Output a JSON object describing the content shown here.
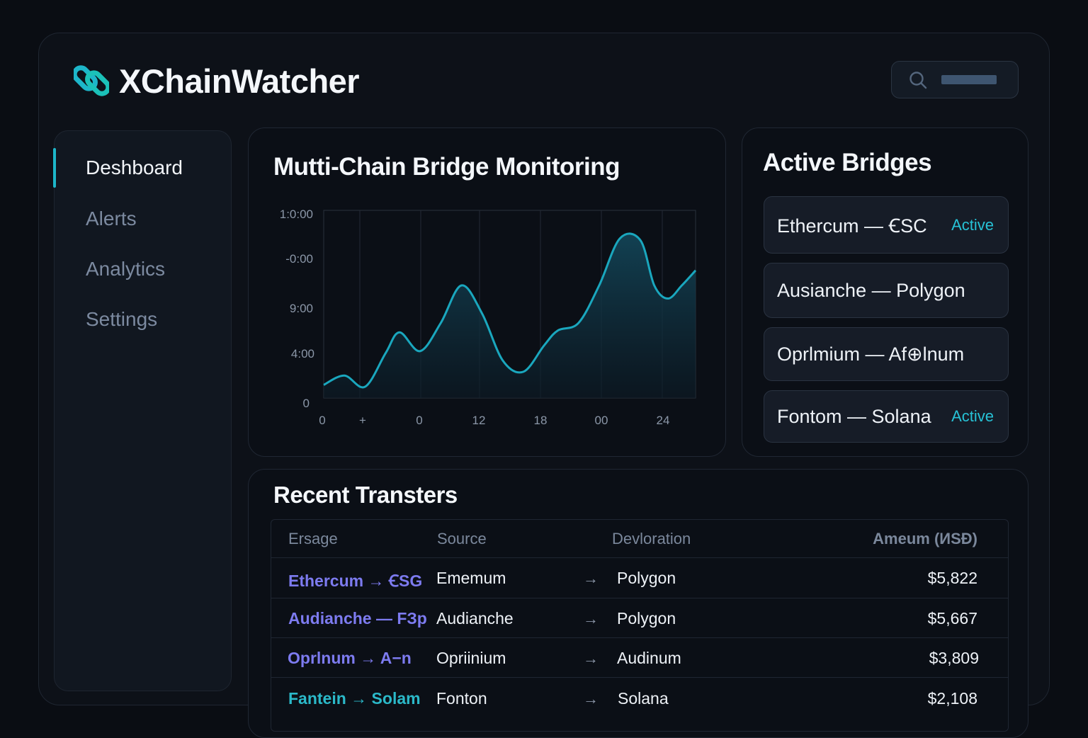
{
  "app": {
    "name": "XChainWatcher"
  },
  "sidebar": {
    "items": [
      {
        "label": "Deshboard",
        "active": true
      },
      {
        "label": "Alerts",
        "active": false
      },
      {
        "label": "Analytics",
        "active": false
      },
      {
        "label": "Settings",
        "active": false
      }
    ]
  },
  "monitor": {
    "title": "Mutti-Chain Bridge Monitoring",
    "chart_data": {
      "type": "area",
      "y_tick_labels": [
        "1:0:00",
        "-0:00",
        "9:00",
        "4:00",
        "0"
      ],
      "x_tick_labels": [
        "0",
        "+",
        "0",
        "12",
        "18",
        "00",
        "24"
      ],
      "x": [
        0,
        3,
        6,
        9,
        11,
        14,
        17,
        20,
        23,
        26,
        29,
        32,
        34,
        37,
        40,
        43,
        46,
        48,
        50,
        52,
        54
      ],
      "values": [
        0.07,
        0.12,
        0.06,
        0.24,
        0.35,
        0.25,
        0.4,
        0.6,
        0.45,
        0.2,
        0.14,
        0.28,
        0.36,
        0.4,
        0.6,
        0.85,
        0.84,
        0.6,
        0.53,
        0.6,
        0.68
      ],
      "ylim": [
        0,
        1
      ],
      "xlim": [
        0,
        54
      ],
      "grid": true,
      "line_color": "#1aa7be",
      "fill_color": "#0f3a4a"
    }
  },
  "bridges": {
    "title": "Active Bridges",
    "items": [
      {
        "name": "Ethercum — ꞒSC",
        "status": "Active"
      },
      {
        "name": "Ausianche — Polygon",
        "status": ""
      },
      {
        "name": "Oprlmium — Af⊕lnum",
        "status": ""
      },
      {
        "name": "Fontom — Solana",
        "status": "Active"
      }
    ]
  },
  "transfers": {
    "title": "Recent Transters",
    "columns": {
      "pair": "Ersage",
      "source": "Source",
      "destination": "Devloration",
      "amount": "Ameum (ИЅĐ)"
    },
    "arrow": "→",
    "rows": [
      {
        "pair": "Ethercum → ꞒSG",
        "source": "Ememum",
        "destination": "Polygon",
        "amount": "$5,822"
      },
      {
        "pair": "Audianche — FЗp",
        "source": "Audianche",
        "destination": "Polygon",
        "amount": "$5,667"
      },
      {
        "pair": "Oprlnum → A−n",
        "source": "Opriinium",
        "destination": "Audinum",
        "amount": "$3,809"
      },
      {
        "pair": "Fantein → Solam",
        "source": "Fonton",
        "destination": "Solana",
        "amount": "$2,108"
      }
    ]
  },
  "colors": {
    "accent": "#1db6c9",
    "pair_text": "#7d7bf0",
    "background": "#0a0d13"
  }
}
